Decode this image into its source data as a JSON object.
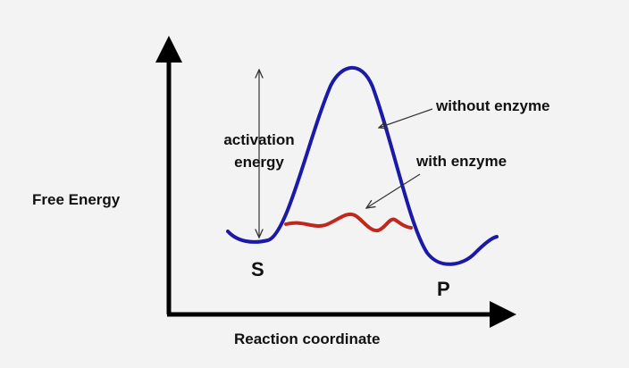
{
  "diagram": {
    "y_axis_label": "Free Energy",
    "x_axis_label": "Reaction coordinate",
    "activation_label_line1": "activation",
    "activation_label_line2": "energy",
    "without_enzyme_label": "without enzyme",
    "with_enzyme_label": "with enzyme",
    "substrate_label": "S",
    "product_label": "P",
    "colors": {
      "axis": "#000000",
      "uncatalyzed_curve": "#1a1aa6",
      "catalyzed_curve": "#c0281e",
      "annotation_arrow": "#333333",
      "background": "#f3f3f3"
    }
  }
}
